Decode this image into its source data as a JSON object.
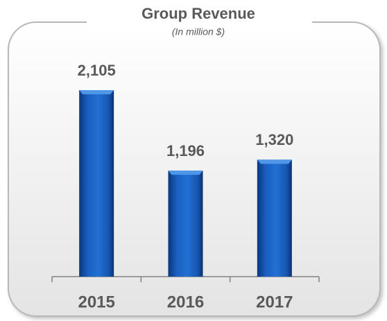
{
  "chart_data": {
    "type": "bar",
    "title": "Group Revenue",
    "subtitle": "(In million $)",
    "categories": [
      "2015",
      "2016",
      "2017"
    ],
    "values": [
      2105,
      1196,
      1320
    ],
    "value_labels": [
      "2,105",
      "1,196",
      "1,320"
    ],
    "color": "#1560c0"
  }
}
